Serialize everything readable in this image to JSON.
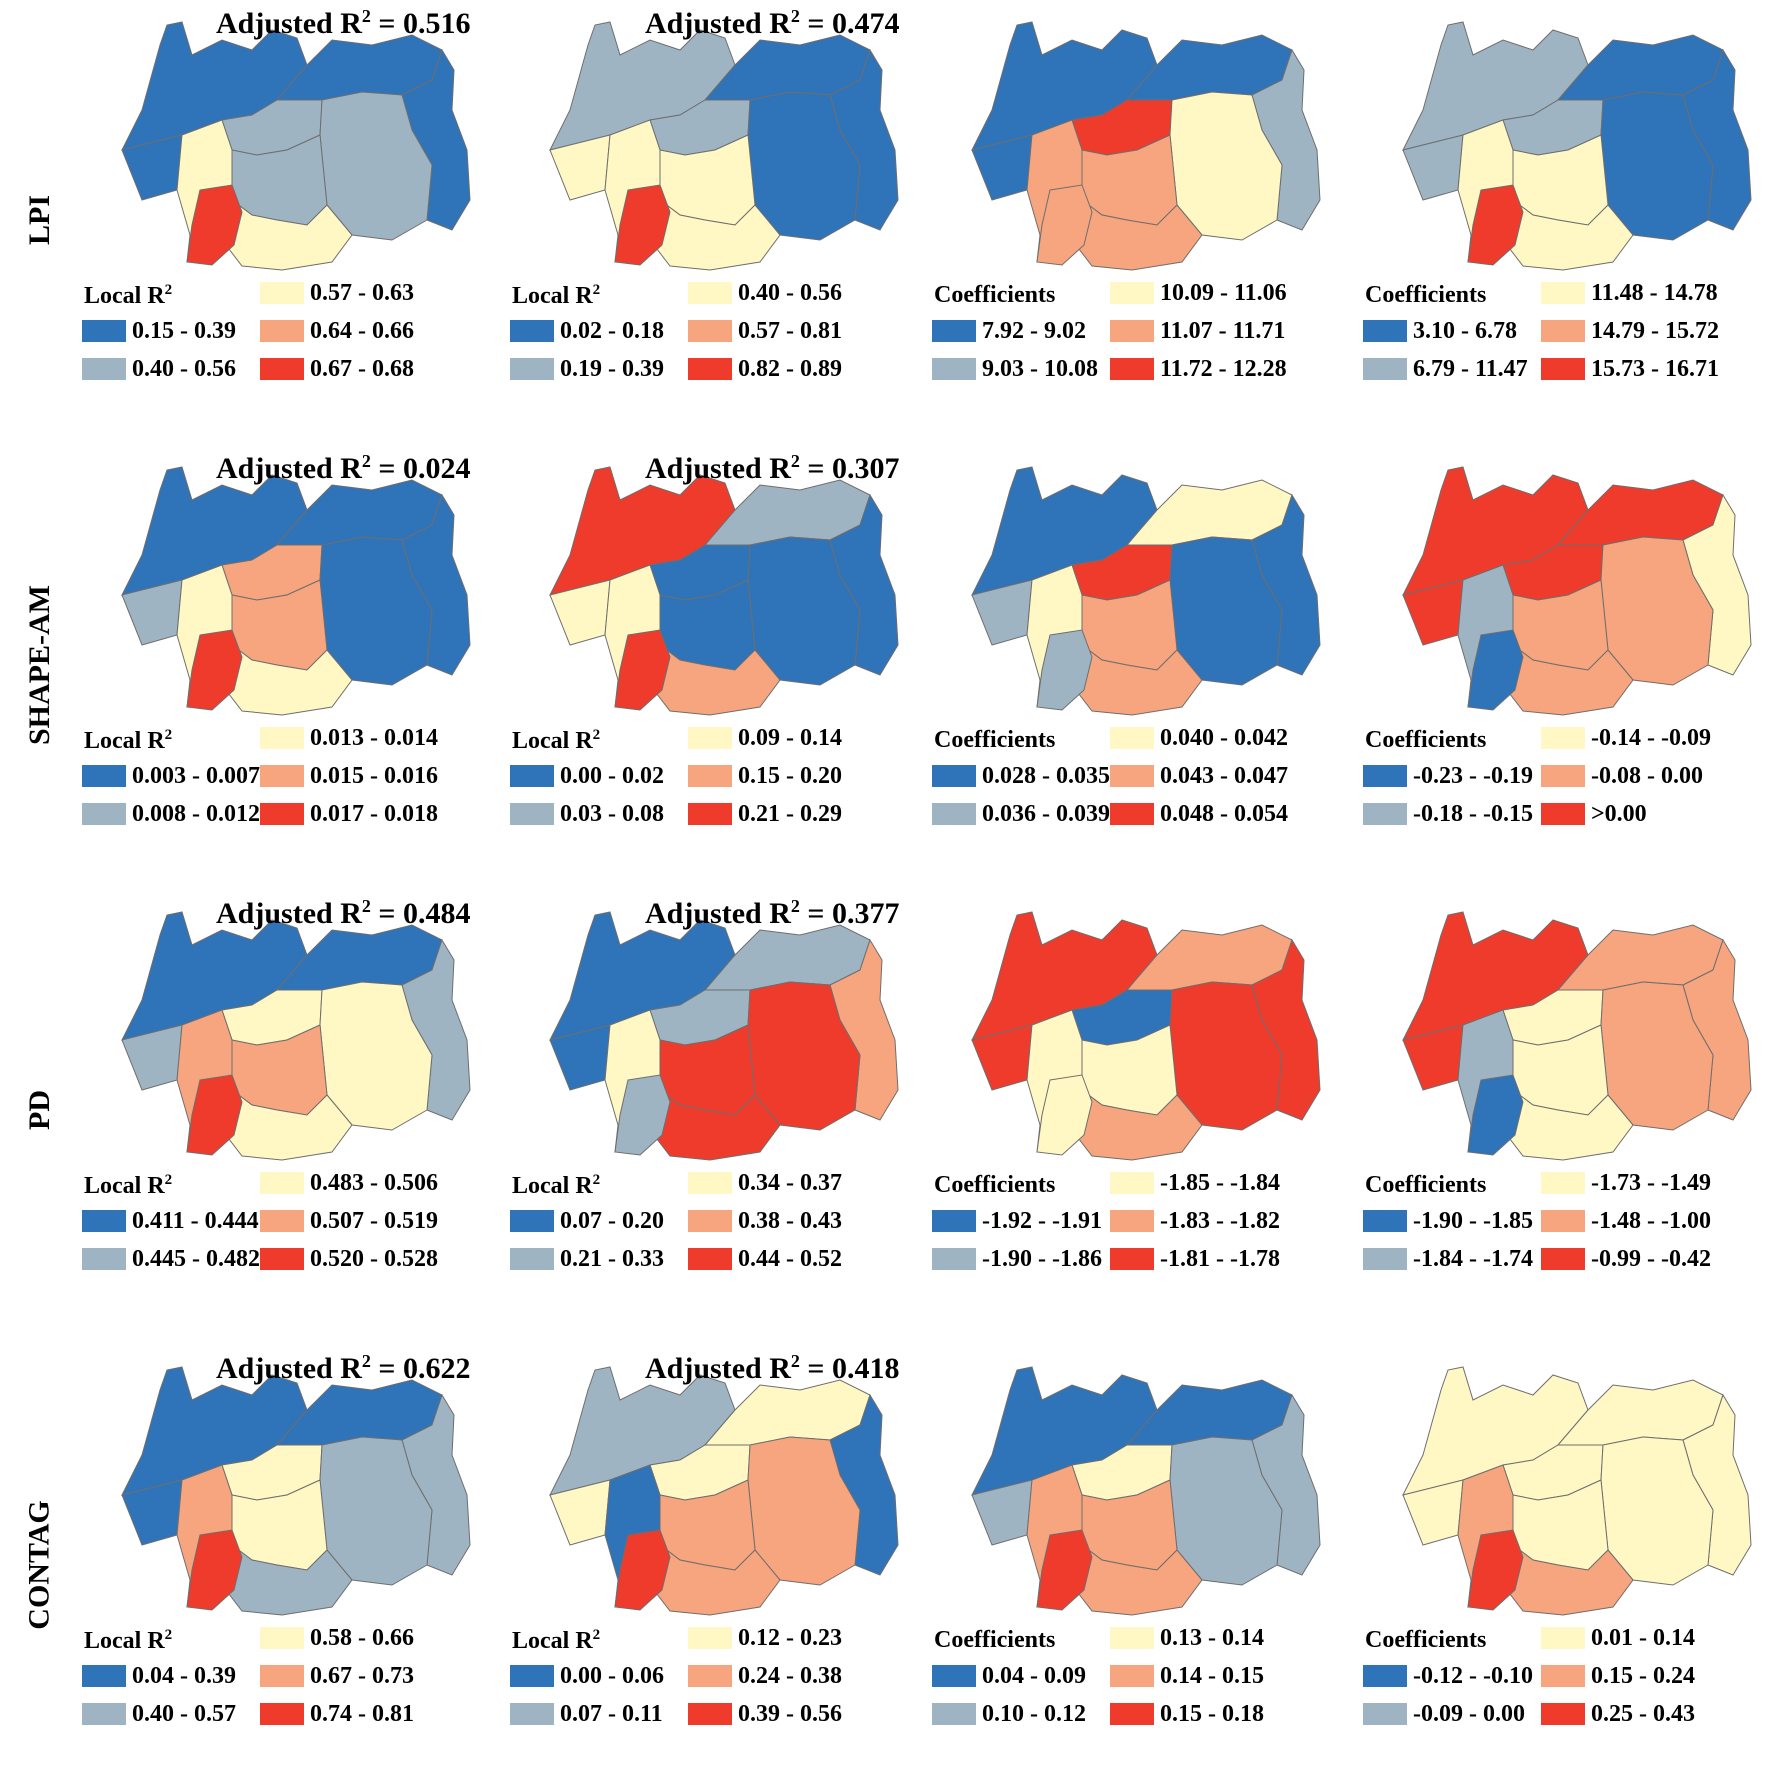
{
  "colors": {
    "c1": "#2f73b9",
    "c2": "#9fb4c3",
    "c3": "#fff8c4",
    "c4": "#f6a57e",
    "c5": "#ef3b2c"
  },
  "rows": [
    {
      "label": "LPI",
      "panels": [
        {
          "adj_prefix": "Adjusted R",
          "adj_sup": "2",
          "adj_value": " = 0.516",
          "legend_title": "Local R",
          "legend_sup": "2",
          "items": [
            "0.15 - 0.39",
            "0.40 - 0.56",
            "0.57 - 0.63",
            "0.64 - 0.66",
            "0.67 - 0.68"
          ]
        },
        {
          "adj_prefix": "Adjusted R",
          "adj_sup": "2",
          "adj_value": " = 0.474",
          "legend_title": "Local R",
          "legend_sup": "2",
          "items": [
            "0.02 - 0.18",
            "0.19 - 0.39",
            "0.40 - 0.56",
            "0.57 - 0.81",
            "0.82 - 0.89"
          ]
        },
        {
          "legend_title": "Coefficients",
          "legend_sup": "",
          "items": [
            "7.92 - 9.02",
            "9.03 - 10.08",
            "10.09 - 11.06",
            "11.07 - 11.71",
            "11.72 - 12.28"
          ]
        },
        {
          "legend_title": "Coefficients",
          "legend_sup": "",
          "items": [
            "3.10 - 6.78",
            "6.79 - 11.47",
            "11.48 - 14.78",
            "14.79 - 15.72",
            "15.73 - 16.71"
          ]
        }
      ]
    },
    {
      "label": "SHAPE-AM",
      "panels": [
        {
          "adj_prefix": "Adjusted R",
          "adj_sup": "2",
          "adj_value": " = 0.024",
          "legend_title": "Local R",
          "legend_sup": "2",
          "items": [
            "0.003 - 0.007",
            "0.008 - 0.012",
            "0.013 - 0.014",
            "0.015 - 0.016",
            "0.017 - 0.018"
          ]
        },
        {
          "adj_prefix": "Adjusted R",
          "adj_sup": "2",
          "adj_value": " = 0.307",
          "legend_title": "Local R",
          "legend_sup": "2",
          "items": [
            "0.00 - 0.02",
            "0.03 - 0.08",
            "0.09 - 0.14",
            "0.15 - 0.20",
            "0.21 - 0.29"
          ]
        },
        {
          "legend_title": "Coefficients",
          "legend_sup": "",
          "items": [
            "0.028 - 0.035",
            "0.036 - 0.039",
            "0.040 - 0.042",
            "0.043 - 0.047",
            "0.048 - 0.054"
          ]
        },
        {
          "legend_title": "Coefficients",
          "legend_sup": "",
          "items": [
            "-0.23 - -0.19",
            "-0.18 - -0.15",
            "-0.14 - -0.09",
            "-0.08 - 0.00",
            ">0.00"
          ]
        }
      ]
    },
    {
      "label": "PD",
      "panels": [
        {
          "adj_prefix": "Adjusted R",
          "adj_sup": "2",
          "adj_value": " = 0.484",
          "legend_title": "Local R",
          "legend_sup": "2",
          "items": [
            "0.411 - 0.444",
            "0.445 - 0.482",
            "0.483 - 0.506",
            "0.507 - 0.519",
            "0.520 - 0.528"
          ]
        },
        {
          "adj_prefix": "Adjusted R",
          "adj_sup": "2",
          "adj_value": " = 0.377",
          "legend_title": "Local R",
          "legend_sup": "2",
          "items": [
            "0.07 - 0.20",
            "0.21 - 0.33",
            "0.34 - 0.37",
            "0.38 - 0.43",
            "0.44 - 0.52"
          ]
        },
        {
          "legend_title": "Coefficients",
          "legend_sup": "",
          "items": [
            "-1.92 - -1.91",
            "-1.90 - -1.86",
            "-1.85 - -1.84",
            "-1.83 - -1.82",
            "-1.81 - -1.78"
          ]
        },
        {
          "legend_title": "Coefficients",
          "legend_sup": "",
          "items": [
            "-1.90 - -1.85",
            "-1.84 - -1.74",
            "-1.73 - -1.49",
            "-1.48 - -1.00",
            "-0.99 - -0.42"
          ]
        }
      ]
    },
    {
      "label": "CONTAG",
      "panels": [
        {
          "adj_prefix": "Adjusted R",
          "adj_sup": "2",
          "adj_value": " = 0.622",
          "legend_title": "Local R",
          "legend_sup": "2",
          "items": [
            "0.04 - 0.39",
            "0.40 - 0.57",
            "0.58 - 0.66",
            "0.67 - 0.73",
            "0.74 - 0.81"
          ]
        },
        {
          "adj_prefix": "Adjusted R",
          "adj_sup": "2",
          "adj_value": " = 0.418",
          "legend_title": "Local R",
          "legend_sup": "2",
          "items": [
            "0.00 - 0.06",
            "0.07 - 0.11",
            "0.12 - 0.23",
            "0.24 - 0.38",
            "0.39 - 0.56"
          ]
        },
        {
          "legend_title": "Coefficients",
          "legend_sup": "",
          "items": [
            "0.04 - 0.09",
            "0.10 - 0.12",
            "0.13 - 0.14",
            "0.14 - 0.15",
            "0.15 - 0.18"
          ]
        },
        {
          "legend_title": "Coefficients",
          "legend_sup": "",
          "items": [
            "-0.12 - -0.10",
            "-0.09 - 0.00",
            "0.01 - 0.14",
            "0.15 - 0.24",
            "0.25 - 0.43"
          ]
        }
      ]
    }
  ]
}
